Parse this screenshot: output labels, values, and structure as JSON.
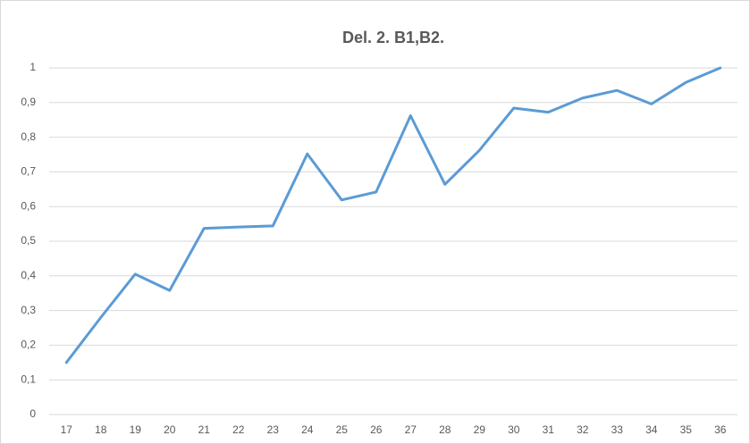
{
  "chart_data": {
    "type": "line",
    "title": "Del. 2. B1,B2.",
    "categories": [
      "17",
      "18",
      "19",
      "20",
      "21",
      "22",
      "23",
      "24",
      "25",
      "26",
      "27",
      "28",
      "29",
      "30",
      "31",
      "32",
      "33",
      "34",
      "35",
      "36"
    ],
    "series": [
      {
        "name": "B1,B2",
        "color": "#5b9bd5",
        "values": [
          0.15,
          0.28,
          0.405,
          0.358,
          0.537,
          0.541,
          0.544,
          0.752,
          0.619,
          0.642,
          0.862,
          0.664,
          0.762,
          0.884,
          0.872,
          0.913,
          0.935,
          0.896,
          0.958,
          1.0
        ]
      }
    ],
    "ylim": [
      0,
      1
    ],
    "yticks": [
      0,
      {
        "value": 0.1,
        "label": "0,1"
      },
      {
        "value": 0.2,
        "label": "0,2"
      },
      {
        "value": 0.3,
        "label": "0,3"
      },
      {
        "value": 0.4,
        "label": "0,4"
      },
      {
        "value": 0.5,
        "label": "0,5"
      },
      {
        "value": 0.6,
        "label": "0,6"
      },
      {
        "value": 0.7,
        "label": "0,7"
      },
      {
        "value": 0.8,
        "label": "0,8"
      },
      {
        "value": 0.9,
        "label": "0,9"
      },
      1
    ],
    "grid": true
  }
}
